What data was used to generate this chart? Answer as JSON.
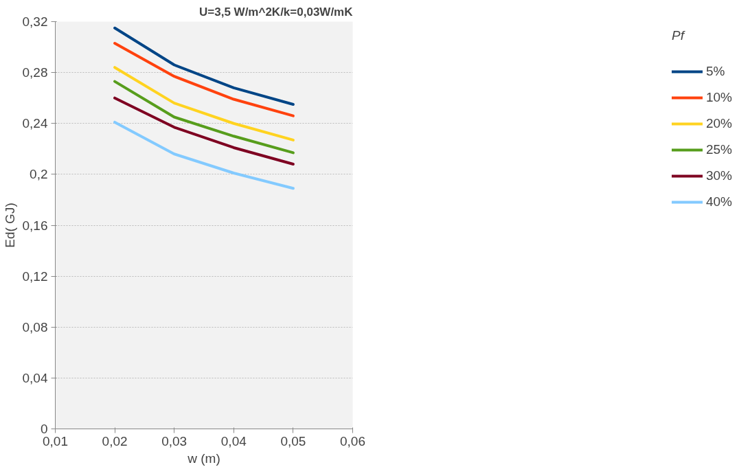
{
  "chart_data": {
    "type": "line",
    "title": "U=3,5 W/m^2K/k=0,03W/mK",
    "xlabel": "w (m)",
    "ylabel": "Ed( GJ)",
    "legend_title": "Pf",
    "x": [
      0.02,
      0.03,
      0.04,
      0.05
    ],
    "series": [
      {
        "name": "5%",
        "color": "#004586",
        "values": [
          0.315,
          0.286,
          0.268,
          0.255
        ]
      },
      {
        "name": "10%",
        "color": "#ff420e",
        "values": [
          0.303,
          0.277,
          0.259,
          0.246
        ]
      },
      {
        "name": "20%",
        "color": "#ffd320",
        "values": [
          0.284,
          0.256,
          0.24,
          0.227
        ]
      },
      {
        "name": "25%",
        "color": "#579d1c",
        "values": [
          0.273,
          0.245,
          0.23,
          0.217
        ]
      },
      {
        "name": "30%",
        "color": "#7e0021",
        "values": [
          0.26,
          0.237,
          0.221,
          0.208
        ]
      },
      {
        "name": "40%",
        "color": "#83caff",
        "values": [
          0.241,
          0.216,
          0.201,
          0.189
        ]
      }
    ],
    "xlim": [
      0.01,
      0.06
    ],
    "xticks": [
      {
        "value": 0.01,
        "label": "0,01"
      },
      {
        "value": 0.02,
        "label": "0,02"
      },
      {
        "value": 0.03,
        "label": "0,03"
      },
      {
        "value": 0.04,
        "label": "0,04"
      },
      {
        "value": 0.05,
        "label": "0,05"
      },
      {
        "value": 0.06,
        "label": "0,06"
      }
    ],
    "ylim": [
      0,
      0.32
    ],
    "yticks": [
      0,
      {
        "value": 0.04,
        "label": "0,04"
      },
      {
        "value": 0.08,
        "label": "0,08"
      },
      {
        "value": 0.12,
        "label": "0,12"
      },
      {
        "value": 0.16,
        "label": "0,16"
      },
      {
        "value": 0.2,
        "label": "0,2"
      },
      {
        "value": 0.24,
        "label": "0,24"
      },
      {
        "value": 0.28,
        "label": "0,28"
      },
      {
        "value": 0.32,
        "label": "0,32"
      }
    ],
    "grid": "y",
    "legend": "right",
    "marker": "none",
    "line_style": "solid"
  }
}
